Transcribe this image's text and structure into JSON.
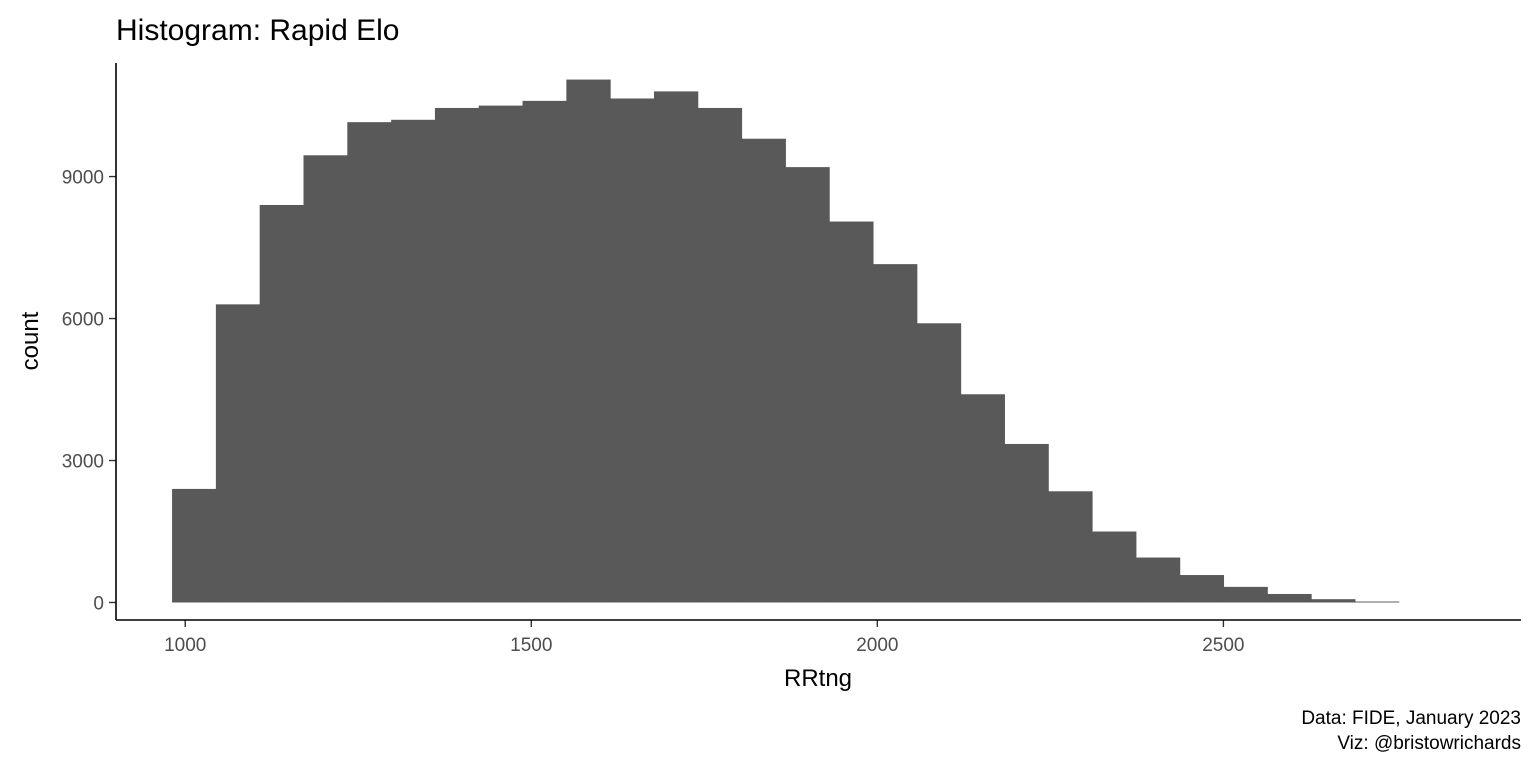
{
  "chart_data": {
    "type": "bar",
    "subtype": "histogram",
    "title": "Histogram: Rapid Elo",
    "xlabel": "RRtng",
    "ylabel": "count",
    "xlim": [
      900,
      2930
    ],
    "ylim": [
      -370,
      11400
    ],
    "x_ticks": [
      1000,
      1500,
      2000,
      2500
    ],
    "y_ticks": [
      0,
      3000,
      6000,
      9000
    ],
    "x_tick_labels": [
      "1000",
      "1500",
      "2000",
      "2500"
    ],
    "y_tick_labels": [
      "0",
      "3000",
      "6000",
      "9000"
    ],
    "bin_width": 63.3,
    "bin_start": 981,
    "values": [
      2400,
      6300,
      8400,
      9450,
      10150,
      10200,
      10450,
      10500,
      10600,
      11050,
      10650,
      10800,
      10450,
      9800,
      9200,
      8050,
      7150,
      5900,
      4400,
      3350,
      2350,
      1500,
      950,
      580,
      330,
      180,
      70,
      20
    ],
    "bar_color": "#595959",
    "grid": false,
    "legend": "none",
    "caption": [
      "Data: FIDE, January 2023",
      "Viz: @bristowrichards"
    ]
  }
}
